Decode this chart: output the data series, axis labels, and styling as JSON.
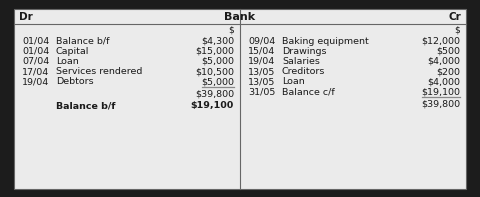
{
  "title": "Bank",
  "header_left": "Dr",
  "header_right": "Cr",
  "currency_label": "$",
  "outer_bg": "#1c1c1c",
  "table_bg": "#ebebeb",
  "border_color": "#666666",
  "text_color": "#1a1a1a",
  "underline_color": "#888888",
  "dr_entries": [
    {
      "date": "01/04",
      "description": "Balance b/f",
      "amount": "$4,300"
    },
    {
      "date": "01/04",
      "description": "Capital",
      "amount": "$15,000"
    },
    {
      "date": "07/04",
      "description": "Loan",
      "amount": "$5,000"
    },
    {
      "date": "17/04",
      "description": "Services rendered",
      "amount": "$10,500"
    },
    {
      "date": "19/04",
      "description": "Debtors",
      "amount": "$5,000"
    }
  ],
  "dr_total": "$39,800",
  "dr_balance_label": "Balance b/f",
  "dr_balance_amount": "$19,100",
  "cr_entries": [
    {
      "date": "09/04",
      "description": "Baking equipment",
      "amount": "$12,000"
    },
    {
      "date": "15/04",
      "description": "Drawings",
      "amount": "$500"
    },
    {
      "date": "19/04",
      "description": "Salaries",
      "amount": "$4,000"
    },
    {
      "date": "13/05",
      "description": "Creditors",
      "amount": "$200"
    },
    {
      "date": "13/05",
      "description": "Loan",
      "amount": "$4,000"
    },
    {
      "date": "31/05",
      "description": "Balance c/f",
      "amount": "$19,100"
    }
  ],
  "cr_total": "$39,800"
}
